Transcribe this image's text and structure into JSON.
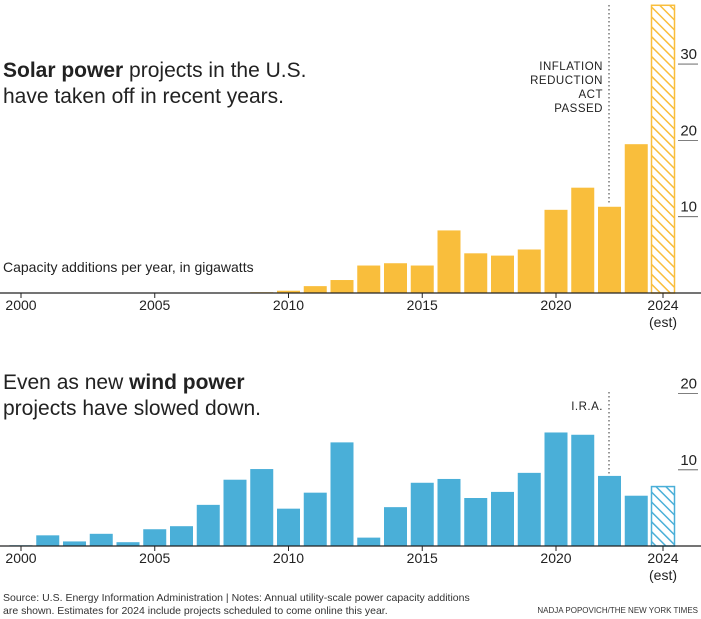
{
  "chart_data": [
    {
      "type": "bar",
      "title_parts": [
        "Solar power",
        "projects in the U.S. have taken off in recent years."
      ],
      "subtitle": "Capacity additions per year, in gigawatts",
      "annotation_lines": [
        "INFLATION",
        "REDUCTION",
        "ACT",
        "PASSED"
      ],
      "categories": [
        2000,
        null,
        null,
        null,
        null,
        2005,
        null,
        null,
        null,
        null,
        2010,
        null,
        null,
        null,
        null,
        2015,
        null,
        null,
        null,
        null,
        2020,
        null,
        null,
        null,
        2024
      ],
      "estimate_label": "(est)",
      "values": [
        0,
        0,
        0,
        0,
        0,
        0,
        0,
        0,
        0,
        0.1,
        0.3,
        0.9,
        1.7,
        3.6,
        3.9,
        3.6,
        8.2,
        5.2,
        4.9,
        5.7,
        10.9,
        13.8,
        11.3,
        19.5,
        37.7
      ],
      "color": "#f9be3c",
      "ylim": [
        0,
        38
      ],
      "yticks": [
        10,
        20,
        30
      ]
    },
    {
      "type": "bar",
      "title_parts": [
        "Even as new",
        "wind power",
        "projects have slowed down."
      ],
      "annotation_lines": [
        "I.R.A."
      ],
      "categories": [
        2000,
        null,
        null,
        null,
        null,
        2005,
        null,
        null,
        null,
        null,
        2010,
        null,
        null,
        null,
        null,
        2015,
        null,
        null,
        null,
        null,
        2020,
        null,
        null,
        null,
        2024
      ],
      "estimate_label": "(est)",
      "values": [
        0.1,
        1.4,
        0.6,
        1.6,
        0.5,
        2.2,
        2.6,
        5.4,
        8.7,
        10.1,
        4.9,
        7.0,
        13.6,
        1.1,
        5.1,
        8.3,
        8.8,
        6.3,
        7.1,
        9.6,
        14.9,
        14.6,
        9.2,
        6.6,
        7.8
      ],
      "color": "#4aafd8",
      "ylim": [
        0,
        21
      ],
      "yticks": [
        10,
        20
      ]
    }
  ],
  "source": "Source: U.S. Energy Information Administration | Notes: Annual utility-scale power capacity additions are shown. Estimates for 2024 include projects scheduled to come online this year.",
  "credit": "NADJA POPOVICH/THE NEW YORK TIMES"
}
